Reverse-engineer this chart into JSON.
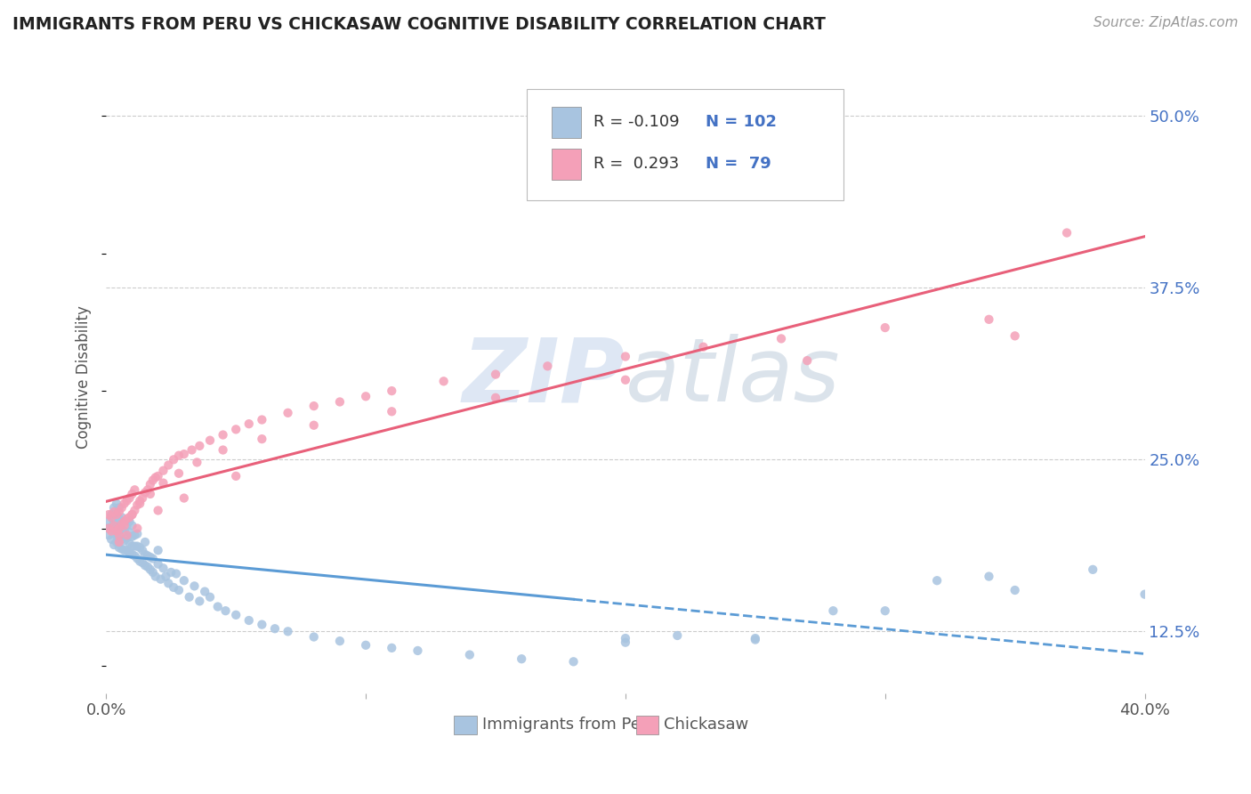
{
  "title": "IMMIGRANTS FROM PERU VS CHICKASAW COGNITIVE DISABILITY CORRELATION CHART",
  "source_text": "Source: ZipAtlas.com",
  "ylabel": "Cognitive Disability",
  "x_label_peru": "Immigrants from Peru",
  "x_label_chickasaw": "Chickasaw",
  "xlim": [
    0.0,
    0.4
  ],
  "ylim": [
    0.08,
    0.54
  ],
  "x_ticks": [
    0.0,
    0.1,
    0.2,
    0.3,
    0.4
  ],
  "x_tick_labels": [
    "0.0%",
    "",
    "",
    "",
    "40.0%"
  ],
  "y_ticks_right": [
    0.125,
    0.25,
    0.375,
    0.5
  ],
  "y_tick_labels_right": [
    "12.5%",
    "25.0%",
    "37.5%",
    "50.0%"
  ],
  "r1": "-0.109",
  "n1": "102",
  "r2": "0.293",
  "n2": "79",
  "color_blue": "#a8c4e0",
  "color_pink": "#f4a0b8",
  "color_blue_line": "#5b9bd5",
  "color_pink_line": "#e8607a",
  "color_text_blue": "#4472c4",
  "color_watermark": "#c8d8ee",
  "background_color": "#ffffff",
  "grid_color": "#cccccc",
  "peru_x": [
    0.001,
    0.001,
    0.001,
    0.002,
    0.002,
    0.002,
    0.003,
    0.003,
    0.003,
    0.003,
    0.004,
    0.004,
    0.004,
    0.004,
    0.004,
    0.005,
    0.005,
    0.005,
    0.005,
    0.005,
    0.006,
    0.006,
    0.006,
    0.006,
    0.007,
    0.007,
    0.007,
    0.007,
    0.008,
    0.008,
    0.008,
    0.009,
    0.009,
    0.009,
    0.009,
    0.01,
    0.01,
    0.01,
    0.01,
    0.011,
    0.011,
    0.011,
    0.012,
    0.012,
    0.012,
    0.013,
    0.013,
    0.014,
    0.014,
    0.015,
    0.015,
    0.015,
    0.016,
    0.016,
    0.017,
    0.017,
    0.018,
    0.018,
    0.019,
    0.02,
    0.02,
    0.021,
    0.022,
    0.023,
    0.024,
    0.025,
    0.026,
    0.027,
    0.028,
    0.03,
    0.032,
    0.034,
    0.036,
    0.038,
    0.04,
    0.043,
    0.046,
    0.05,
    0.055,
    0.06,
    0.065,
    0.07,
    0.08,
    0.09,
    0.1,
    0.11,
    0.12,
    0.14,
    0.16,
    0.18,
    0.2,
    0.22,
    0.25,
    0.28,
    0.32,
    0.34,
    0.38,
    0.2,
    0.25,
    0.3,
    0.35,
    0.4
  ],
  "peru_y": [
    0.2,
    0.205,
    0.195,
    0.192,
    0.2,
    0.21,
    0.188,
    0.196,
    0.205,
    0.215,
    0.19,
    0.196,
    0.203,
    0.21,
    0.218,
    0.186,
    0.192,
    0.198,
    0.207,
    0.215,
    0.185,
    0.192,
    0.2,
    0.208,
    0.184,
    0.191,
    0.198,
    0.205,
    0.184,
    0.193,
    0.202,
    0.182,
    0.189,
    0.197,
    0.205,
    0.181,
    0.187,
    0.194,
    0.202,
    0.18,
    0.187,
    0.195,
    0.178,
    0.187,
    0.196,
    0.176,
    0.186,
    0.175,
    0.184,
    0.173,
    0.181,
    0.19,
    0.172,
    0.18,
    0.17,
    0.179,
    0.168,
    0.178,
    0.165,
    0.174,
    0.184,
    0.163,
    0.171,
    0.165,
    0.16,
    0.168,
    0.157,
    0.167,
    0.155,
    0.162,
    0.15,
    0.158,
    0.147,
    0.154,
    0.15,
    0.143,
    0.14,
    0.137,
    0.133,
    0.13,
    0.127,
    0.125,
    0.121,
    0.118,
    0.115,
    0.113,
    0.111,
    0.108,
    0.105,
    0.103,
    0.117,
    0.122,
    0.119,
    0.14,
    0.162,
    0.165,
    0.17,
    0.12,
    0.12,
    0.14,
    0.155,
    0.152
  ],
  "chickasaw_x": [
    0.001,
    0.001,
    0.002,
    0.002,
    0.003,
    0.003,
    0.004,
    0.004,
    0.005,
    0.005,
    0.006,
    0.006,
    0.007,
    0.007,
    0.008,
    0.008,
    0.009,
    0.009,
    0.01,
    0.01,
    0.011,
    0.011,
    0.012,
    0.013,
    0.014,
    0.015,
    0.016,
    0.017,
    0.018,
    0.019,
    0.02,
    0.022,
    0.024,
    0.026,
    0.028,
    0.03,
    0.033,
    0.036,
    0.04,
    0.045,
    0.05,
    0.055,
    0.06,
    0.07,
    0.08,
    0.09,
    0.1,
    0.11,
    0.13,
    0.15,
    0.17,
    0.2,
    0.23,
    0.26,
    0.3,
    0.34,
    0.37,
    0.005,
    0.007,
    0.01,
    0.013,
    0.017,
    0.022,
    0.028,
    0.035,
    0.045,
    0.06,
    0.08,
    0.11,
    0.15,
    0.2,
    0.27,
    0.35,
    0.005,
    0.008,
    0.012,
    0.02,
    0.03,
    0.05
  ],
  "chickasaw_y": [
    0.2,
    0.21,
    0.198,
    0.208,
    0.202,
    0.212,
    0.198,
    0.21,
    0.2,
    0.212,
    0.203,
    0.215,
    0.205,
    0.218,
    0.207,
    0.22,
    0.208,
    0.222,
    0.21,
    0.225,
    0.213,
    0.228,
    0.217,
    0.22,
    0.222,
    0.226,
    0.228,
    0.232,
    0.235,
    0.237,
    0.238,
    0.242,
    0.246,
    0.25,
    0.253,
    0.254,
    0.257,
    0.26,
    0.264,
    0.268,
    0.272,
    0.276,
    0.279,
    0.284,
    0.289,
    0.292,
    0.296,
    0.3,
    0.307,
    0.312,
    0.318,
    0.325,
    0.332,
    0.338,
    0.346,
    0.352,
    0.415,
    0.195,
    0.202,
    0.21,
    0.218,
    0.225,
    0.233,
    0.24,
    0.248,
    0.257,
    0.265,
    0.275,
    0.285,
    0.295,
    0.308,
    0.322,
    0.34,
    0.19,
    0.195,
    0.2,
    0.213,
    0.222,
    0.238
  ]
}
